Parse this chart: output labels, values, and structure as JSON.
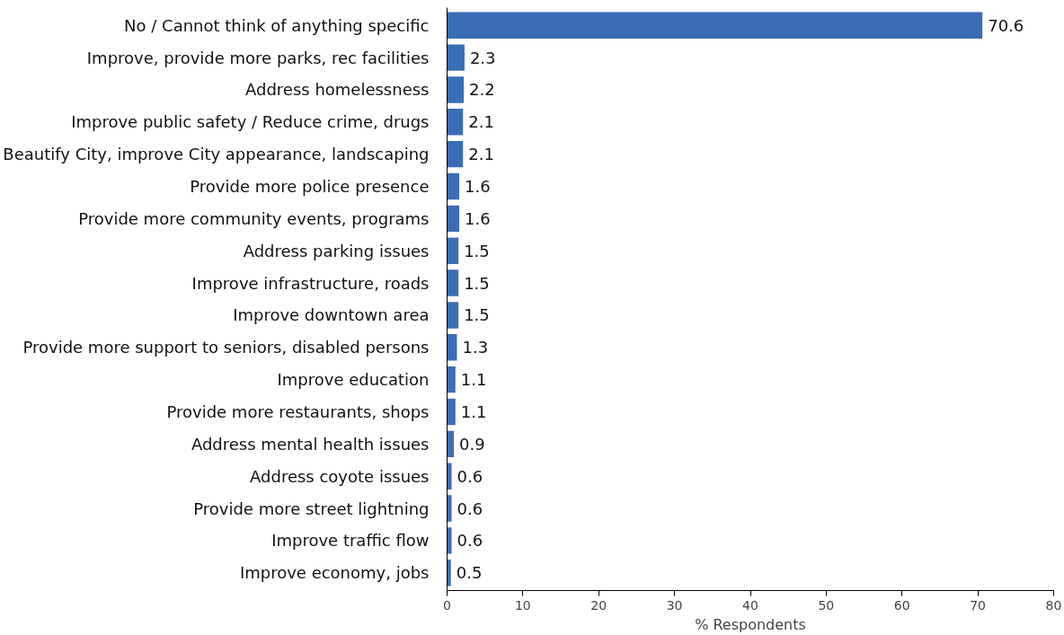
{
  "chart_data": {
    "type": "bar",
    "orientation": "horizontal",
    "xlabel": "% Respondents",
    "categories": [
      "No / Cannot think of anything specific",
      "Improve, provide more parks, rec facilities",
      "Address homelessness",
      "Improve public safety / Reduce crime, drugs",
      "Beautify City, improve City appearance, landscaping",
      "Provide more police presence",
      "Provide more community events, programs",
      "Address parking issues",
      "Improve infrastructure, roads",
      "Improve downtown area",
      "Provide more support to seniors, disabled persons",
      "Improve education",
      "Provide more restaurants, shops",
      "Address mental health issues",
      "Address coyote issues",
      "Provide more street lightning",
      "Improve traffic flow",
      "Improve economy, jobs"
    ],
    "values": [
      70.6,
      2.3,
      2.2,
      2.1,
      2.1,
      1.6,
      1.6,
      1.5,
      1.5,
      1.5,
      1.3,
      1.1,
      1.1,
      0.9,
      0.6,
      0.6,
      0.6,
      0.5
    ],
    "color": "#3a6db5",
    "xlim": [
      0,
      80
    ],
    "xticks": [
      0,
      10,
      20,
      30,
      40,
      50,
      60,
      70,
      80
    ],
    "grid": false,
    "data_labels": true
  }
}
